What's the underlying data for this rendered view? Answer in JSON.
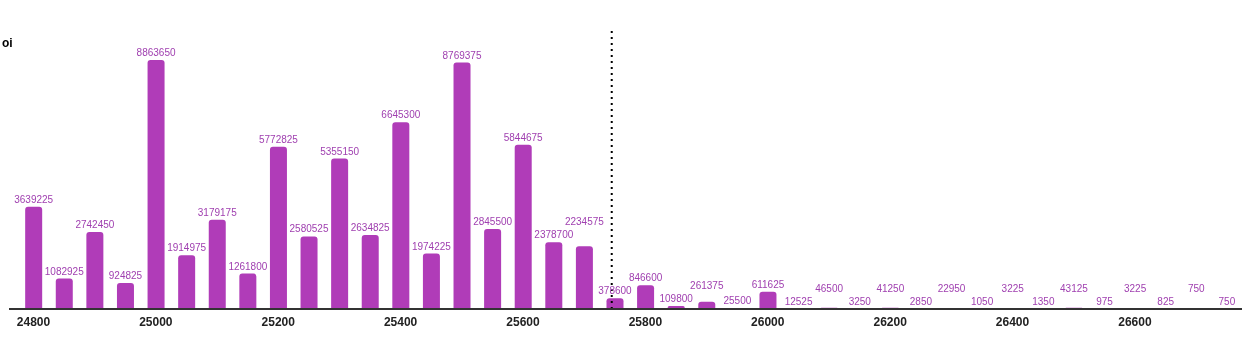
{
  "chart_data": {
    "type": "bar",
    "ylabel": "oi",
    "x": [
      24800,
      24850,
      24900,
      24950,
      25000,
      25050,
      25100,
      25150,
      25200,
      25250,
      25300,
      25350,
      25400,
      25450,
      25500,
      25550,
      25600,
      25650,
      25700,
      25750,
      25800,
      25850,
      25900,
      25950,
      26000,
      26050,
      26100,
      26150,
      26200,
      26250,
      26300,
      26350,
      26400,
      26450,
      26500,
      26550,
      26600,
      26650,
      26700,
      26750
    ],
    "values": [
      3639225,
      1082925,
      2742450,
      924825,
      8863650,
      1914975,
      3179175,
      1261800,
      5772825,
      2580525,
      5355150,
      2634825,
      6645300,
      1974225,
      8769375,
      2845500,
      5844675,
      2378700,
      2234575,
      378600,
      846600,
      109800,
      261375,
      25500,
      611625,
      12525,
      46500,
      3250,
      41250,
      2850,
      22950,
      1050,
      3225,
      1350,
      43125,
      975,
      3225,
      825,
      750,
      750
    ],
    "color": "#b03cb8",
    "data_labels": true,
    "xlim": [
      24760,
      26775
    ],
    "xticks": [
      24800,
      25000,
      25200,
      25400,
      25600,
      25800,
      26000,
      26200,
      26400,
      26600
    ],
    "ylim": [
      0,
      10000000
    ],
    "tick_labels": "x",
    "ref_lines": [
      {
        "axis": "x",
        "value": 25745,
        "color": "#000000",
        "line_style": "dotted"
      }
    ]
  }
}
